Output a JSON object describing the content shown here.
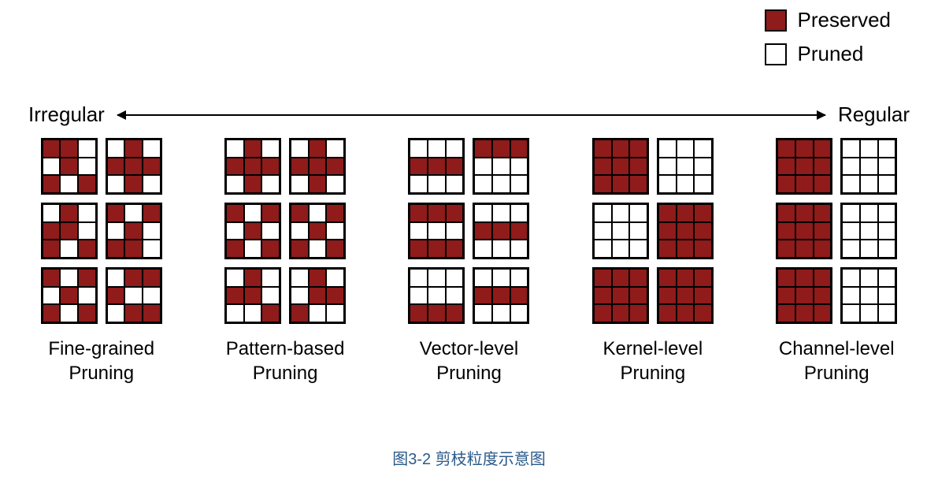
{
  "colors": {
    "preserved": "#8f1b1b",
    "pruned": "#ffffff",
    "cell_border": "#000000",
    "caption_color": "#2b5a8a",
    "background": "#ffffff"
  },
  "legend": {
    "preserved_label": "Preserved",
    "pruned_label": "Pruned"
  },
  "spectrum": {
    "left_label": "Irregular",
    "right_label": "Regular"
  },
  "caption": "图3-2 剪枝粒度示意图",
  "columns": [
    {
      "label": "Fine-grained\nPruning",
      "rows": [
        [
          [
            1,
            1,
            0,
            0,
            1,
            0,
            1,
            0,
            1
          ],
          [
            0,
            1,
            0,
            1,
            1,
            1,
            0,
            1,
            0
          ]
        ],
        [
          [
            0,
            1,
            0,
            1,
            1,
            0,
            1,
            0,
            1
          ],
          [
            1,
            0,
            1,
            0,
            1,
            0,
            1,
            1,
            0
          ]
        ],
        [
          [
            1,
            0,
            1,
            0,
            1,
            0,
            1,
            0,
            1
          ],
          [
            0,
            1,
            1,
            1,
            0,
            0,
            0,
            1,
            1
          ]
        ]
      ]
    },
    {
      "label": "Pattern-based\nPruning",
      "rows": [
        [
          [
            0,
            1,
            0,
            1,
            1,
            1,
            0,
            1,
            0
          ],
          [
            0,
            1,
            0,
            1,
            1,
            1,
            0,
            1,
            0
          ]
        ],
        [
          [
            1,
            0,
            1,
            0,
            1,
            0,
            1,
            0,
            1
          ],
          [
            1,
            0,
            1,
            0,
            1,
            0,
            1,
            0,
            1
          ]
        ],
        [
          [
            0,
            1,
            0,
            1,
            1,
            0,
            0,
            0,
            1
          ],
          [
            0,
            1,
            0,
            0,
            1,
            1,
            1,
            0,
            0
          ]
        ]
      ]
    },
    {
      "label": "Vector-level\nPruning",
      "rows": [
        [
          [
            0,
            0,
            0,
            1,
            1,
            1,
            0,
            0,
            0
          ],
          [
            1,
            1,
            1,
            0,
            0,
            0,
            0,
            0,
            0
          ]
        ],
        [
          [
            1,
            1,
            1,
            0,
            0,
            0,
            1,
            1,
            1
          ],
          [
            0,
            0,
            0,
            1,
            1,
            1,
            0,
            0,
            0
          ]
        ],
        [
          [
            0,
            0,
            0,
            0,
            0,
            0,
            1,
            1,
            1
          ],
          [
            0,
            0,
            0,
            1,
            1,
            1,
            0,
            0,
            0
          ]
        ]
      ]
    },
    {
      "label": "Kernel-level\nPruning",
      "rows": [
        [
          [
            1,
            1,
            1,
            1,
            1,
            1,
            1,
            1,
            1
          ],
          [
            0,
            0,
            0,
            0,
            0,
            0,
            0,
            0,
            0
          ]
        ],
        [
          [
            0,
            0,
            0,
            0,
            0,
            0,
            0,
            0,
            0
          ],
          [
            1,
            1,
            1,
            1,
            1,
            1,
            1,
            1,
            1
          ]
        ],
        [
          [
            1,
            1,
            1,
            1,
            1,
            1,
            1,
            1,
            1
          ],
          [
            1,
            1,
            1,
            1,
            1,
            1,
            1,
            1,
            1
          ]
        ]
      ]
    },
    {
      "label": "Channel-level\nPruning",
      "rows": [
        [
          [
            1,
            1,
            1,
            1,
            1,
            1,
            1,
            1,
            1
          ],
          [
            0,
            0,
            0,
            0,
            0,
            0,
            0,
            0,
            0
          ]
        ],
        [
          [
            1,
            1,
            1,
            1,
            1,
            1,
            1,
            1,
            1
          ],
          [
            0,
            0,
            0,
            0,
            0,
            0,
            0,
            0,
            0
          ]
        ],
        [
          [
            1,
            1,
            1,
            1,
            1,
            1,
            1,
            1,
            1
          ],
          [
            0,
            0,
            0,
            0,
            0,
            0,
            0,
            0,
            0
          ]
        ]
      ]
    }
  ]
}
